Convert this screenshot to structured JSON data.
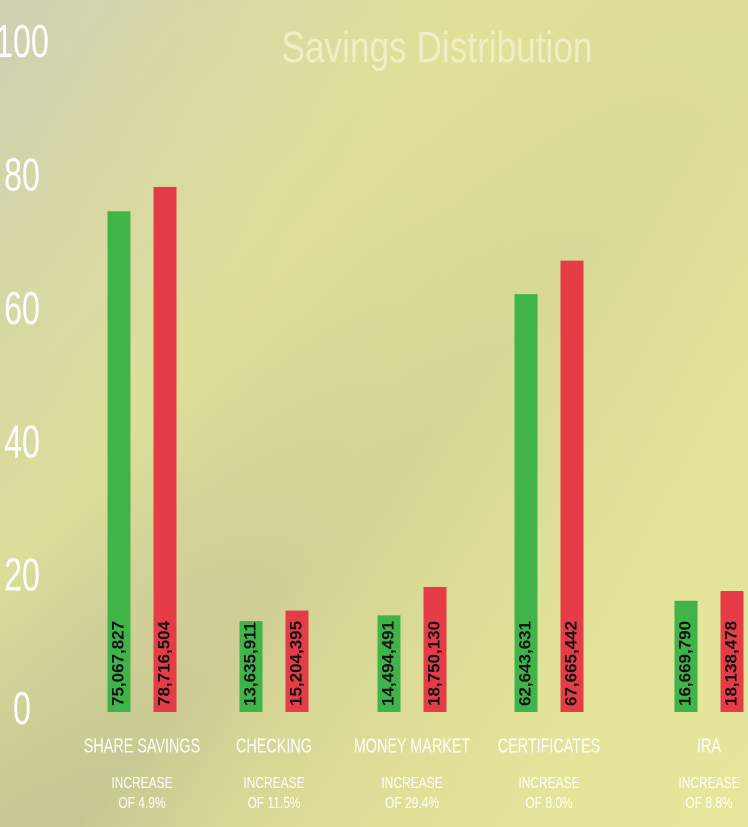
{
  "chart_data": {
    "type": "bar",
    "title": "Savings Distribution",
    "categories": [
      "SHARE  SAVINGS",
      "CHECKING",
      "MONEY  MARKET",
      "CERTIFICATES",
      "IRA"
    ],
    "notes": [
      [
        "INCREASE",
        "OF  4.9%"
      ],
      [
        "INCREASE",
        "OF  11.5%"
      ],
      [
        "INCREASE",
        "OF  29.4%"
      ],
      [
        "INCREASE",
        "OF  8.0%"
      ],
      [
        "INCREASE",
        "OF  8.8%"
      ]
    ],
    "series": [
      {
        "color": "#3fb449",
        "values": [
          75.067827,
          13.635911,
          14.494491,
          62.643631,
          16.66979
        ],
        "value_labels": [
          "75,067,827",
          "13,635,911",
          "14,494,491",
          "62,643,631",
          "16,669,790"
        ]
      },
      {
        "color": "#e63c48",
        "values": [
          78.716504,
          15.204395,
          18.75013,
          67.665442,
          18.138478
        ],
        "value_labels": [
          "78,716,504",
          "15,204,395",
          "18,750,130",
          "67,665,442",
          "18,138,478"
        ]
      }
    ],
    "ylim": [
      0,
      100
    ],
    "yticks": [
      0,
      20,
      40,
      60,
      80,
      100
    ]
  }
}
